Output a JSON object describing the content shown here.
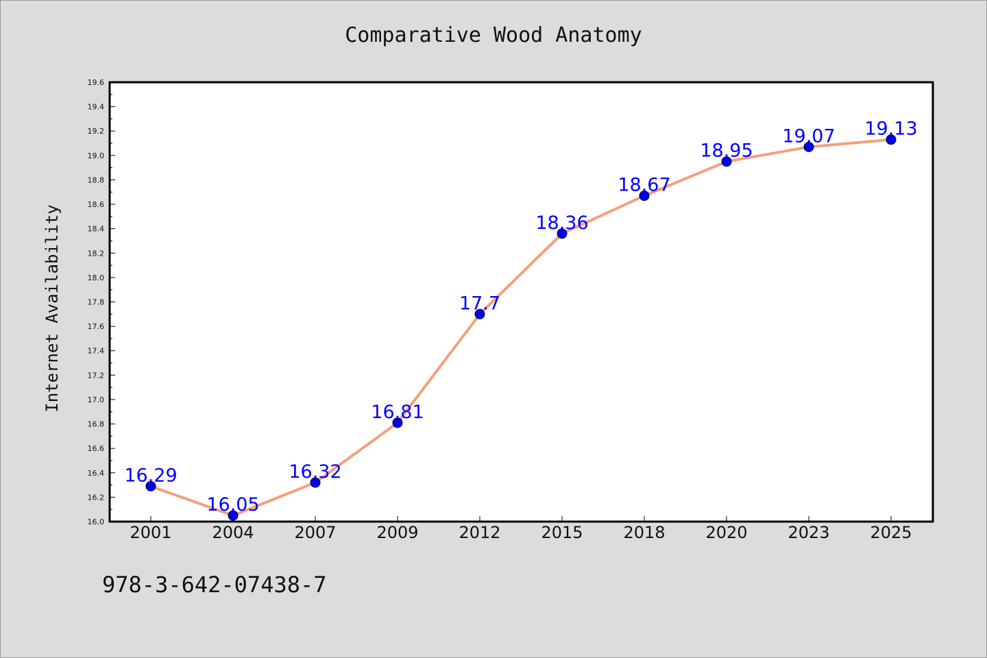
{
  "page": {
    "isbn": "978-3-642-07438-7"
  },
  "chart_data": {
    "type": "line",
    "title": "Comparative Wood Anatomy",
    "xlabel": "",
    "ylabel": "Internet Availability",
    "categories": [
      "2001",
      "2004",
      "2007",
      "2009",
      "2012",
      "2015",
      "2018",
      "2020",
      "2023",
      "2025"
    ],
    "series": [
      {
        "values": [
          16.29,
          16.05,
          16.32,
          16.81,
          17.7,
          18.36,
          18.67,
          18.95,
          19.07,
          19.13
        ],
        "line_color": "#f4a07c",
        "marker_color": "#0000ee"
      }
    ],
    "data_labels": [
      "16.29",
      "16.05",
      "16.32",
      "16.81",
      "17.7",
      "18.36",
      "18.67",
      "18.95",
      "19.07",
      "19.13"
    ],
    "ylim": [
      16.0,
      19.6
    ],
    "yticks": [
      "16.0",
      "16.2",
      "16.4",
      "16.6",
      "16.8",
      "17.0",
      "17.2",
      "17.4",
      "17.6",
      "17.8",
      "18.0",
      "18.2",
      "18.4",
      "18.6",
      "18.8",
      "19.0",
      "19.2",
      "19.4",
      "19.6"
    ],
    "grid": false,
    "legend": "none"
  }
}
